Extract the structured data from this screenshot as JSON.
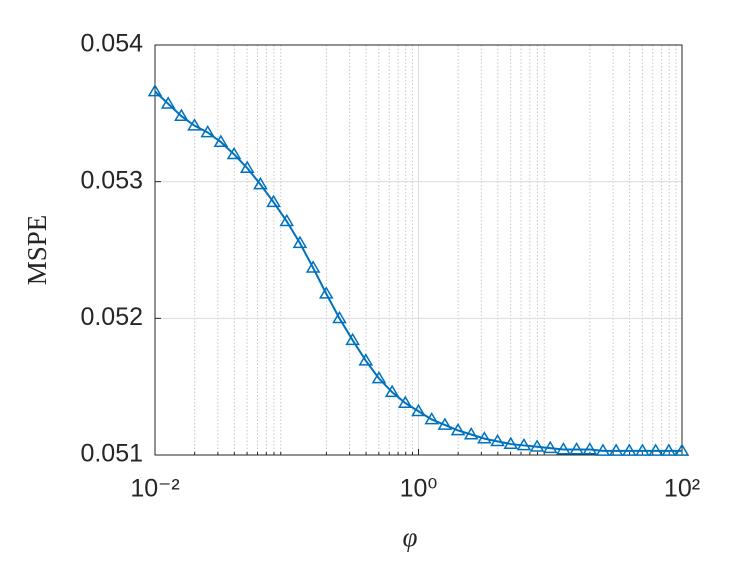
{
  "chart_data": {
    "type": "line",
    "x_label": "φ",
    "y_label": "MSPE",
    "x": [
      0.01,
      0.01259,
      0.01585,
      0.01995,
      0.02512,
      0.03162,
      0.03981,
      0.05012,
      0.0631,
      0.07943,
      0.1,
      0.1259,
      0.1585,
      0.1995,
      0.2512,
      0.3162,
      0.3981,
      0.5012,
      0.631,
      0.7943,
      1,
      1.259,
      1.585,
      1.995,
      2.512,
      3.162,
      3.981,
      5.012,
      6.31,
      7.943,
      10,
      12.59,
      15.85,
      19.95,
      25.12,
      31.62,
      39.81,
      50.12,
      63.1,
      79.43,
      100
    ],
    "series": [
      {
        "color": "#0072bd",
        "marker": "triangle",
        "values": [
          0.05366,
          0.05357,
          0.05348,
          0.05341,
          0.05336,
          0.05329,
          0.0532,
          0.0531,
          0.05298,
          0.05285,
          0.05271,
          0.05255,
          0.05237,
          0.05218,
          0.052,
          0.05184,
          0.05169,
          0.05156,
          0.05146,
          0.05138,
          0.05132,
          0.05126,
          0.05122,
          0.05118,
          0.05115,
          0.05112,
          0.0511,
          0.05108,
          0.05107,
          0.05106,
          0.05105,
          0.05104,
          0.05104,
          0.05104,
          0.05103,
          0.05103,
          0.05103,
          0.05103,
          0.05103,
          0.05103,
          0.05103
        ]
      }
    ],
    "xscale": "log",
    "xlim": [
      0.01,
      100
    ],
    "xticks": [
      {
        "value": 0.01,
        "label": "10⁻²"
      },
      {
        "value": 1,
        "label": "10⁰"
      },
      {
        "value": 100,
        "label": "10²"
      }
    ],
    "ylim": [
      0.051,
      0.054
    ],
    "yticks": [
      0.051,
      0.052,
      0.053,
      0.054
    ],
    "grid": true,
    "minor_grid": true
  }
}
